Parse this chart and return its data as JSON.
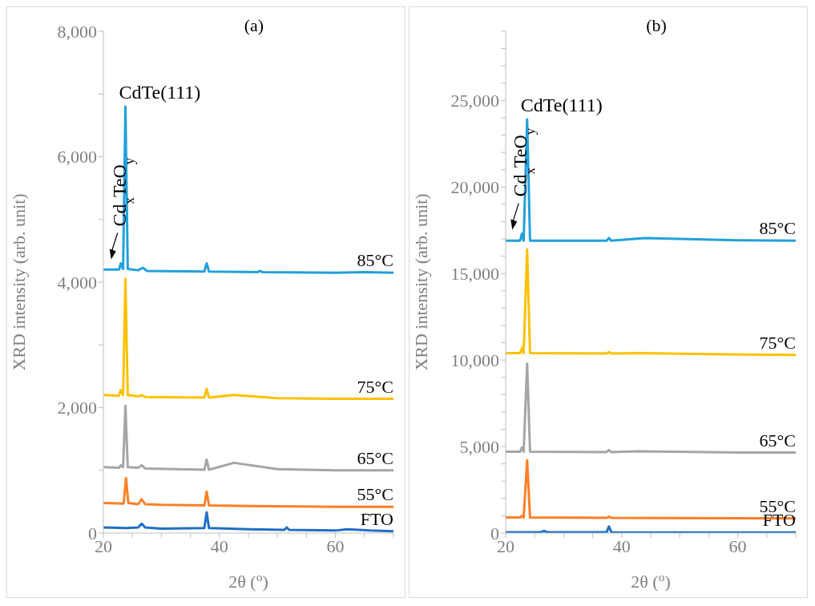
{
  "chart_data": [
    {
      "type": "line",
      "title": "(a)",
      "xlabel": "2θ ($^{o}$)",
      "ylabel": "XRD intensity (arb. unit)",
      "xlim": [
        20,
        70
      ],
      "xticks": [
        20,
        {
          "value": 25,
          "label": null
        },
        40,
        {
          "value": 30,
          "label": null
        },
        {
          "value": 35,
          "label": null
        },
        {
          "value": 45,
          "label": null
        },
        {
          "value": 50,
          "label": null
        },
        {
          "value": 55,
          "label": null
        },
        60,
        {
          "value": 65,
          "label": null
        },
        {
          "value": 70,
          "label": null
        }
      ],
      "ylim": [
        0,
        8000
      ],
      "yticks": [
        {
          "value": 0,
          "label": "0"
        },
        {
          "value": 1000,
          "label": null
        },
        {
          "value": 2000,
          "label": "2,000"
        },
        {
          "value": 3000,
          "label": null
        },
        {
          "value": 4000,
          "label": "4,000"
        },
        {
          "value": 5000,
          "label": null
        },
        {
          "value": 6000,
          "label": "6,000"
        },
        {
          "value": 7000,
          "label": null
        },
        {
          "value": 8000,
          "label": "8,000"
        }
      ],
      "series": [
        {
          "name": "FTO",
          "color": "#1f6fc5",
          "x": [
            20,
            24,
            26,
            26.6,
            27.2,
            30,
            37.4,
            37.8,
            38.2,
            45,
            51.2,
            51.6,
            52,
            60,
            62,
            66,
            70
          ],
          "values": [
            90,
            80,
            90,
            150,
            90,
            70,
            80,
            330,
            80,
            60,
            50,
            90,
            50,
            40,
            60,
            40,
            30
          ]
        },
        {
          "name": "55°C",
          "color": "#ff7f27",
          "x": [
            20,
            23.5,
            23.9,
            24.3,
            26,
            26.6,
            27.2,
            30,
            37.4,
            37.8,
            38.2,
            45,
            60,
            70
          ],
          "values": [
            480,
            470,
            880,
            480,
            460,
            540,
            460,
            450,
            440,
            660,
            440,
            430,
            420,
            420
          ]
        },
        {
          "name": "65°C",
          "color": "#a5a5a5",
          "x": [
            20,
            22.7,
            23,
            23.4,
            23.8,
            24.2,
            26,
            26.6,
            27.2,
            37.4,
            37.8,
            38.2,
            42.5,
            50,
            60,
            70
          ],
          "values": [
            1050,
            1040,
            1080,
            1050,
            2030,
            1050,
            1040,
            1080,
            1030,
            1010,
            1170,
            1010,
            1120,
            1020,
            1000,
            1000
          ]
        },
        {
          "name": "75°C",
          "color": "#ffc000",
          "x": [
            20,
            22.7,
            23,
            23.4,
            23.8,
            24.2,
            26,
            26.6,
            27.2,
            37.4,
            37.8,
            38.2,
            42.5,
            50,
            60,
            70
          ],
          "values": [
            2200,
            2190,
            2280,
            2200,
            4050,
            2200,
            2180,
            2200,
            2170,
            2160,
            2300,
            2160,
            2200,
            2150,
            2140,
            2140
          ]
        },
        {
          "name": "85°C",
          "color": "#22a0db",
          "x": [
            20,
            22.7,
            23,
            23.4,
            23.8,
            24.2,
            26,
            26.8,
            27.5,
            37.4,
            37.8,
            38.2,
            46.6,
            47,
            47.4,
            60,
            65,
            70
          ],
          "values": [
            4200,
            4200,
            4300,
            4210,
            6800,
            4210,
            4190,
            4230,
            4180,
            4170,
            4300,
            4170,
            4160,
            4180,
            4160,
            4150,
            4160,
            4150
          ]
        }
      ],
      "annotations": [
        {
          "text": "CdTe(111)",
          "x": 23.8,
          "y": 6800
        },
        {
          "text": "Cd$_{x}$TeO$_{y}$",
          "x": 23,
          "y": 4300
        }
      ]
    },
    {
      "type": "line",
      "title": "(b)",
      "xlabel": "2θ ($^{o}$)",
      "ylabel": "XRD intensity (arb. unit)",
      "xlim": [
        20,
        70
      ],
      "xticks": [
        20,
        {
          "value": 25,
          "label": null
        },
        {
          "value": 30,
          "label": null
        },
        {
          "value": 35,
          "label": null
        },
        40,
        {
          "value": 45,
          "label": null
        },
        {
          "value": 50,
          "label": null
        },
        {
          "value": 55,
          "label": null
        },
        60,
        {
          "value": 65,
          "label": null
        },
        {
          "value": 70,
          "label": null
        }
      ],
      "ylim": [
        0,
        29000
      ],
      "yticks": [
        {
          "value": 0,
          "label": "0"
        },
        {
          "value": 1000,
          "label": null
        },
        {
          "value": 2000,
          "label": null
        },
        {
          "value": 3000,
          "label": null
        },
        {
          "value": 4000,
          "label": null
        },
        {
          "value": 5000,
          "label": "5,000"
        },
        {
          "value": 6000,
          "label": null
        },
        {
          "value": 7000,
          "label": null
        },
        {
          "value": 8000,
          "label": null
        },
        {
          "value": 9000,
          "label": null
        },
        {
          "value": 10000,
          "label": "10,000"
        },
        {
          "value": 11000,
          "label": null
        },
        {
          "value": 12000,
          "label": null
        },
        {
          "value": 13000,
          "label": null
        },
        {
          "value": 14000,
          "label": null
        },
        {
          "value": 15000,
          "label": "15,000"
        },
        {
          "value": 16000,
          "label": null
        },
        {
          "value": 17000,
          "label": null
        },
        {
          "value": 18000,
          "label": null
        },
        {
          "value": 19000,
          "label": null
        },
        {
          "value": 20000,
          "label": "20,000"
        },
        {
          "value": 21000,
          "label": null
        },
        {
          "value": 22000,
          "label": null
        },
        {
          "value": 23000,
          "label": null
        },
        {
          "value": 24000,
          "label": null
        },
        {
          "value": 25000,
          "label": "25,000"
        },
        {
          "value": 26000,
          "label": null
        },
        {
          "value": 27000,
          "label": null
        },
        {
          "value": 28000,
          "label": null
        },
        {
          "value": 29000,
          "label": null
        }
      ],
      "series": [
        {
          "name": "FTO",
          "color": "#1f6fc5",
          "x": [
            20,
            26,
            26.6,
            27.2,
            37.4,
            37.8,
            38.2,
            50,
            60,
            70
          ],
          "values": [
            50,
            50,
            120,
            50,
            50,
            380,
            50,
            40,
            40,
            30
          ]
        },
        {
          "name": "55°C",
          "color": "#ff7f27",
          "x": [
            20,
            22.5,
            22.8,
            23.1,
            23.7,
            24.2,
            37.4,
            37.8,
            38.2,
            45,
            60,
            70
          ],
          "values": [
            900,
            900,
            1000,
            900,
            4200,
            900,
            880,
            950,
            880,
            870,
            860,
            850
          ]
        },
        {
          "name": "65°C",
          "color": "#a5a5a5",
          "x": [
            20,
            22.5,
            22.8,
            23.1,
            23.7,
            24.2,
            37.4,
            37.8,
            38.2,
            43,
            60,
            70
          ],
          "values": [
            4700,
            4700,
            4950,
            4700,
            9800,
            4700,
            4680,
            4800,
            4680,
            4720,
            4660,
            4650
          ]
        },
        {
          "name": "75°C",
          "color": "#ffc000",
          "x": [
            20,
            22.5,
            22.8,
            23.1,
            23.7,
            24.2,
            37.4,
            37.8,
            38.2,
            43,
            60,
            70
          ],
          "values": [
            10400,
            10400,
            10700,
            10400,
            16400,
            10400,
            10380,
            10450,
            10380,
            10400,
            10320,
            10300
          ]
        },
        {
          "name": "85°C",
          "color": "#22a0db",
          "x": [
            20,
            22.5,
            22.8,
            23.1,
            23.7,
            24.2,
            37.4,
            37.8,
            38.2,
            44,
            60,
            70
          ],
          "values": [
            16900,
            16900,
            17300,
            16900,
            23900,
            16900,
            16900,
            17050,
            16900,
            17050,
            16920,
            16900
          ]
        }
      ],
      "annotations": [
        {
          "text": "CdTe(111)",
          "x": 23.7,
          "y": 23900
        },
        {
          "text": "Cd$_{x}$TeO$_{y}$",
          "x": 22.8,
          "y": 17300
        }
      ]
    }
  ]
}
